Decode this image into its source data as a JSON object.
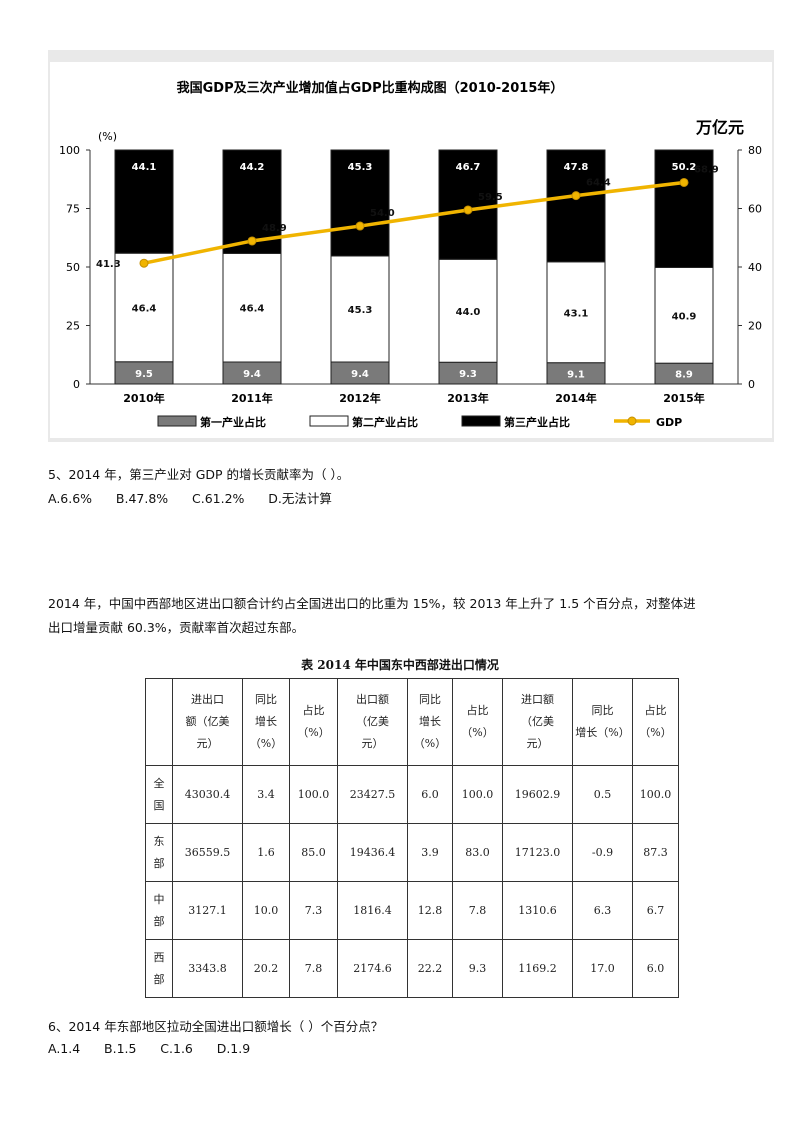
{
  "chart_data": {
    "type": "bar",
    "title": "我国GDP及三次产业增加值占GDP比重构成图（2010-2015年）",
    "y_left_label": "(%)",
    "y_right_label": "万亿元",
    "y_left_ticks": [
      "100",
      "75",
      "50",
      "25",
      "0"
    ],
    "y_right_ticks": [
      "80",
      "60",
      "40",
      "20",
      "0"
    ],
    "ylim_left": [
      0,
      100
    ],
    "ylim_right": [
      0,
      80
    ],
    "categories": [
      "2010年",
      "2011年",
      "2012年",
      "2013年",
      "2014年",
      "2015年"
    ],
    "stacked": true,
    "legend": [
      "第一产业占比",
      "第二产业占比",
      "第三产业占比",
      "GDP"
    ],
    "series": [
      {
        "name": "第一产业占比",
        "values": [
          9.5,
          9.4,
          9.4,
          9.3,
          9.1,
          8.9
        ],
        "labels": [
          "9.5",
          "9.4",
          "9.4",
          "9.3",
          "9.1",
          "8.9"
        ],
        "color": "#7a7a7a"
      },
      {
        "name": "第二产业占比",
        "values": [
          46.4,
          46.4,
          45.3,
          44.0,
          43.1,
          40.9
        ],
        "labels": [
          "46.4",
          "46.4",
          "45.3",
          "44.0",
          "43.1",
          "40.9"
        ],
        "color": "#ffffff"
      },
      {
        "name": "第三产业占比",
        "values": [
          44.1,
          44.2,
          45.3,
          46.7,
          47.8,
          50.2
        ],
        "labels": [
          "44.1",
          "44.2",
          "45.3",
          "46.7",
          "47.8",
          "50.2"
        ],
        "color": "#000000"
      }
    ],
    "line": {
      "name": "GDP",
      "values": [
        41.3,
        48.9,
        54.0,
        59.5,
        64.4,
        68.9
      ],
      "labels": [
        "41.3",
        "48.9",
        "54.0",
        "59.5",
        "64.4",
        "68.9"
      ],
      "color": "#f0b400"
    }
  },
  "q5": {
    "text": "5、2014 年，第三产业对 GDP 的增长贡献率为（   ）。",
    "options": "A.6.6%      B.47.8%      C.61.2%      D.无法计算"
  },
  "paragraph": {
    "line1": "2014 年，中国中西部地区进出口额合计约占全国进出口的比重为 15%，较 2013 年上升了 1.5 个百分点，对整体进",
    "line2": "出口增量贡献 60.3%，贡献率首次超过东部。"
  },
  "table": {
    "title": "表 2014 年中国东中西部进出口情况",
    "headers": [
      [
        "进出口",
        "额（亿美",
        "元）"
      ],
      [
        "同比",
        "增长",
        "（%）"
      ],
      [
        "占比",
        "（%）"
      ],
      [
        "出口额",
        "（亿美",
        "元）"
      ],
      [
        "同比",
        "增长",
        "（%）"
      ],
      [
        "占比",
        "（%）"
      ],
      [
        "进口额",
        "（亿美",
        "元）"
      ],
      [
        "同比",
        "增长（%）"
      ],
      [
        "占比",
        "（%）"
      ]
    ],
    "rows": [
      {
        "region": [
          "全",
          "国"
        ],
        "cells": [
          "43030.4",
          "3.4",
          "100.0",
          "23427.5",
          "6.0",
          "100.0",
          "19602.9",
          "0.5",
          "100.0"
        ]
      },
      {
        "region": [
          "东",
          "部"
        ],
        "cells": [
          "36559.5",
          "1.6",
          "85.0",
          "19436.4",
          "3.9",
          "83.0",
          "17123.0",
          "-0.9",
          "87.3"
        ]
      },
      {
        "region": [
          "中",
          "部"
        ],
        "cells": [
          "3127.1",
          "10.0",
          "7.3",
          "1816.4",
          "12.8",
          "7.8",
          "1310.6",
          "6.3",
          "6.7"
        ]
      },
      {
        "region": [
          "西",
          "部"
        ],
        "cells": [
          "3343.8",
          "20.2",
          "7.8",
          "2174.6",
          "22.2",
          "9.3",
          "1169.2",
          "17.0",
          "6.0"
        ]
      }
    ]
  },
  "q6": {
    "text": "6、2014 年东部地区拉动全国进出口额增长（      ）个百分点？",
    "options": "A.1.4      B.1.5      C.1.6      D.1.9"
  }
}
